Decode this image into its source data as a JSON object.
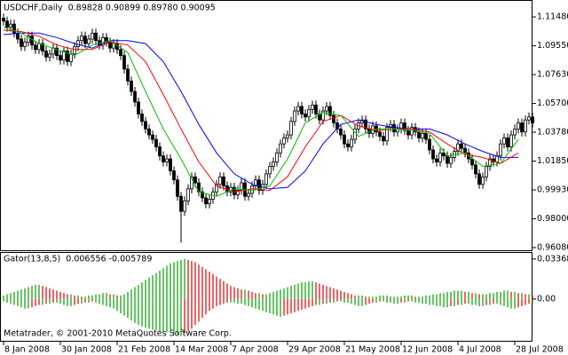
{
  "chart_data": [
    {
      "type": "candlestick",
      "title": "USDCHF,Daily",
      "header": "0.89828 0.90899 0.89780 0.90095",
      "xlim": [
        -1,
        149
      ],
      "xticks": [
        {
          "value": 0,
          "label": "8 Jan 2008"
        },
        {
          "value": 16,
          "label": "30 Jan 2008"
        },
        {
          "value": 32,
          "label": "21 Feb 2008"
        },
        {
          "value": 48,
          "label": "14 Mar 2008"
        },
        {
          "value": 64,
          "label": "7 Apr 2008"
        },
        {
          "value": 80,
          "label": "29 Apr 2008"
        },
        {
          "value": 96,
          "label": "21 May 2008"
        },
        {
          "value": 112,
          "label": "12 Jun 2008"
        },
        {
          "value": 128,
          "label": "4 Jul 2008"
        },
        {
          "value": 144,
          "label": "28 Jul 2008"
        }
      ],
      "ylim": [
        0.959,
        1.1255
      ],
      "yticks": [
        {
          "value": 1.1148,
          "label": "1.11480"
        },
        {
          "value": 1.0955,
          "label": "1.09550"
        },
        {
          "value": 1.0763,
          "label": "1.07630"
        },
        {
          "value": 1.057,
          "label": "1.05700"
        },
        {
          "value": 1.0378,
          "label": "1.03780"
        },
        {
          "value": 1.0185,
          "label": "1.01850"
        },
        {
          "value": 0.9993,
          "label": "0.99930"
        },
        {
          "value": 0.98,
          "label": "0.98000"
        },
        {
          "value": 0.9608,
          "label": "0.96080"
        }
      ],
      "bull_color": "#ffffff",
      "bear_color": "#000000",
      "open": [
        1.114,
        1.112,
        1.108,
        1.11,
        1.104,
        1.1,
        1.095,
        1.098,
        1.102,
        1.096,
        1.093,
        1.097,
        1.092,
        1.088,
        1.09,
        1.094,
        1.089,
        1.086,
        1.092,
        1.085,
        1.09,
        1.095,
        1.099,
        1.102,
        1.097,
        1.1,
        1.104,
        1.099,
        1.096,
        1.101,
        1.098,
        1.094,
        1.097,
        1.093,
        1.089,
        1.08,
        1.072,
        1.065,
        1.058,
        1.05,
        1.045,
        1.04,
        1.036,
        1.033,
        1.028,
        1.022,
        1.018,
        1.02,
        1.012,
        1.006,
        0.995,
        0.985,
        0.992,
        1.0,
        1.008,
        1.004,
        0.998,
        0.994,
        0.99,
        0.993,
        0.998,
        1.003,
        1.008,
        1.002,
        0.998,
        1.001,
        0.996,
        0.999,
        1.004,
        0.995,
        0.997,
        1.002,
        1.006,
        0.999,
        1.003,
        1.01,
        1.015,
        1.018,
        1.024,
        1.03,
        1.034,
        1.036,
        1.045,
        1.052,
        1.055,
        1.05,
        1.048,
        1.053,
        1.056,
        1.05,
        1.046,
        1.052,
        1.055,
        1.049,
        1.044,
        1.04,
        1.036,
        1.03,
        1.028,
        1.033,
        1.04,
        1.044,
        1.046,
        1.04,
        1.037,
        1.042,
        1.038,
        1.035,
        1.032,
        1.041,
        1.043,
        1.038,
        1.04,
        1.044,
        1.039,
        1.036,
        1.041,
        1.038,
        1.034,
        1.037,
        1.033,
        1.026,
        1.02,
        1.018,
        1.024,
        1.022,
        1.017,
        1.021,
        1.025,
        1.03,
        1.027,
        1.024,
        1.02,
        1.016,
        1.01,
        1.003,
        1.008,
        1.015,
        1.02,
        1.018,
        1.022,
        1.03,
        1.034,
        1.028,
        1.036,
        1.04,
        1.044,
        1.038,
        1.046,
        1.048
      ],
      "high": [
        1.117,
        1.115,
        1.113,
        1.113,
        1.107,
        1.103,
        1.101,
        1.105,
        1.105,
        1.099,
        1.1,
        1.1,
        1.095,
        1.093,
        1.097,
        1.097,
        1.092,
        1.095,
        1.095,
        1.093,
        1.098,
        1.102,
        1.105,
        1.105,
        1.103,
        1.107,
        1.107,
        1.102,
        1.104,
        1.104,
        1.101,
        1.1,
        1.1,
        1.096,
        1.092,
        1.083,
        1.075,
        1.068,
        1.061,
        1.053,
        1.048,
        1.043,
        1.039,
        1.036,
        1.031,
        1.025,
        1.023,
        1.023,
        1.015,
        1.009,
        0.998,
        0.995,
        1.003,
        1.011,
        1.011,
        1.007,
        1.001,
        0.997,
        0.996,
        1.001,
        1.006,
        1.011,
        1.011,
        1.005,
        1.004,
        1.004,
        1.002,
        1.007,
        1.007,
        1.0,
        1.005,
        1.009,
        1.009,
        1.006,
        1.013,
        1.018,
        1.021,
        1.027,
        1.033,
        1.037,
        1.039,
        1.048,
        1.055,
        1.058,
        1.058,
        1.053,
        1.056,
        1.059,
        1.059,
        1.053,
        1.055,
        1.058,
        1.058,
        1.052,
        1.047,
        1.043,
        1.039,
        1.033,
        1.036,
        1.043,
        1.047,
        1.049,
        1.049,
        1.043,
        1.045,
        1.045,
        1.041,
        1.038,
        1.044,
        1.046,
        1.046,
        1.043,
        1.047,
        1.047,
        1.042,
        1.044,
        1.044,
        1.041,
        1.04,
        1.04,
        1.036,
        1.029,
        1.023,
        1.027,
        1.027,
        1.025,
        1.024,
        1.028,
        1.033,
        1.033,
        1.03,
        1.027,
        1.023,
        1.019,
        1.013,
        1.011,
        1.018,
        1.023,
        1.023,
        1.025,
        1.033,
        1.037,
        1.037,
        1.039,
        1.043,
        1.047,
        1.047,
        1.049,
        1.051,
        1.051
      ],
      "low": [
        1.109,
        1.105,
        1.105,
        1.101,
        1.097,
        1.092,
        1.092,
        1.095,
        1.093,
        1.09,
        1.09,
        1.089,
        1.085,
        1.085,
        1.087,
        1.086,
        1.083,
        1.083,
        1.082,
        1.082,
        1.087,
        1.092,
        1.096,
        1.094,
        1.094,
        1.097,
        1.096,
        1.093,
        1.093,
        1.095,
        1.091,
        1.091,
        1.09,
        1.086,
        1.077,
        1.069,
        1.062,
        1.055,
        1.047,
        1.042,
        1.037,
        1.033,
        1.03,
        1.025,
        1.019,
        1.015,
        1.015,
        1.009,
        1.003,
        0.992,
        0.964,
        0.982,
        0.989,
        0.997,
        1.001,
        0.995,
        0.991,
        0.987,
        0.987,
        0.99,
        0.995,
        1.0,
        0.999,
        0.995,
        0.995,
        0.993,
        0.993,
        0.996,
        0.992,
        0.992,
        0.994,
        0.999,
        0.996,
        0.996,
        1.0,
        1.007,
        1.012,
        1.015,
        1.021,
        1.027,
        1.031,
        1.033,
        1.042,
        1.049,
        1.047,
        1.045,
        1.045,
        1.05,
        1.047,
        1.043,
        1.043,
        1.049,
        1.046,
        1.041,
        1.037,
        1.033,
        1.027,
        1.025,
        1.025,
        1.03,
        1.037,
        1.041,
        1.037,
        1.034,
        1.034,
        1.035,
        1.032,
        1.029,
        1.029,
        1.038,
        1.035,
        1.035,
        1.037,
        1.036,
        1.033,
        1.033,
        1.035,
        1.031,
        1.031,
        1.03,
        1.023,
        1.017,
        1.015,
        1.015,
        1.019,
        1.014,
        1.014,
        1.018,
        1.022,
        1.024,
        1.021,
        1.017,
        1.013,
        1.007,
        1.0,
        1.0,
        1.005,
        1.012,
        1.015,
        1.015,
        1.019,
        1.027,
        1.025,
        1.025,
        1.033,
        1.037,
        1.035,
        1.035,
        1.043,
        1.041
      ],
      "close": [
        1.112,
        1.108,
        1.11,
        1.104,
        1.1,
        1.095,
        1.098,
        1.102,
        1.096,
        1.093,
        1.097,
        1.092,
        1.088,
        1.09,
        1.094,
        1.089,
        1.086,
        1.092,
        1.085,
        1.09,
        1.095,
        1.099,
        1.102,
        1.097,
        1.1,
        1.104,
        1.099,
        1.096,
        1.101,
        1.098,
        1.094,
        1.097,
        1.093,
        1.089,
        1.08,
        1.072,
        1.065,
        1.058,
        1.05,
        1.045,
        1.04,
        1.036,
        1.033,
        1.028,
        1.022,
        1.018,
        1.02,
        1.012,
        1.006,
        0.995,
        0.985,
        0.992,
        1.0,
        1.008,
        1.004,
        0.998,
        0.994,
        0.99,
        0.993,
        0.998,
        1.003,
        1.008,
        1.002,
        0.998,
        1.001,
        0.996,
        0.999,
        1.004,
        0.995,
        0.997,
        1.002,
        1.006,
        0.999,
        1.003,
        1.01,
        1.015,
        1.018,
        1.024,
        1.03,
        1.034,
        1.036,
        1.045,
        1.052,
        1.055,
        1.05,
        1.048,
        1.053,
        1.056,
        1.05,
        1.046,
        1.052,
        1.055,
        1.049,
        1.044,
        1.04,
        1.036,
        1.03,
        1.028,
        1.033,
        1.04,
        1.044,
        1.046,
        1.04,
        1.037,
        1.042,
        1.038,
        1.035,
        1.032,
        1.041,
        1.043,
        1.038,
        1.04,
        1.044,
        1.039,
        1.036,
        1.041,
        1.038,
        1.034,
        1.037,
        1.033,
        1.026,
        1.02,
        1.018,
        1.024,
        1.022,
        1.017,
        1.021,
        1.025,
        1.03,
        1.027,
        1.024,
        1.02,
        1.016,
        1.01,
        1.003,
        1.008,
        1.015,
        1.02,
        1.018,
        1.022,
        1.03,
        1.034,
        1.028,
        1.036,
        1.04,
        1.044,
        1.038,
        1.046,
        1.048,
        1.044
      ],
      "series": [
        {
          "color": "#0000ff",
          "x": [
            0,
            5,
            10,
            15,
            20,
            25,
            30,
            35,
            40,
            45,
            50,
            55,
            60,
            65,
            70,
            75,
            80,
            85,
            90,
            95,
            100,
            105,
            110,
            115,
            120,
            125,
            130,
            135,
            140,
            145
          ],
          "values": [
            1.103,
            1.104,
            1.104,
            1.101,
            1.097,
            1.094,
            1.099,
            1.099,
            1.097,
            1.085,
            1.065,
            1.043,
            1.024,
            1.01,
            1.003,
            1.0,
            1.001,
            1.012,
            1.03,
            1.043,
            1.046,
            1.043,
            1.041,
            1.04,
            1.04,
            1.036,
            1.03,
            1.025,
            1.021,
            1.021
          ]
        },
        {
          "color": "#ff0000",
          "x": [
            0,
            5,
            10,
            15,
            20,
            25,
            30,
            35,
            40,
            45,
            50,
            55,
            60,
            65,
            70,
            75,
            80,
            85,
            90,
            95,
            100,
            105,
            110,
            115,
            120,
            125,
            130,
            135,
            140,
            145
          ],
          "values": [
            1.106,
            1.105,
            1.102,
            1.096,
            1.093,
            1.093,
            1.098,
            1.096,
            1.085,
            1.063,
            1.04,
            1.018,
            1.002,
            0.998,
            1.0,
            0.999,
            1.008,
            1.028,
            1.045,
            1.049,
            1.042,
            1.039,
            1.04,
            1.04,
            1.038,
            1.03,
            1.023,
            1.021,
            1.017,
            1.024
          ]
        },
        {
          "color": "#00c000",
          "x": [
            0,
            5,
            10,
            15,
            20,
            25,
            30,
            35,
            40,
            45,
            50,
            55,
            60,
            65,
            70,
            75,
            80,
            85,
            90,
            95,
            100,
            105,
            110,
            115,
            120,
            125,
            130,
            135,
            140,
            145
          ],
          "values": [
            1.108,
            1.104,
            1.097,
            1.093,
            1.089,
            1.096,
            1.099,
            1.091,
            1.065,
            1.04,
            1.02,
            0.998,
            0.995,
            1.0,
            0.999,
            1.002,
            1.02,
            1.044,
            1.051,
            1.049,
            1.035,
            1.04,
            1.04,
            1.039,
            1.037,
            1.022,
            1.024,
            1.015,
            1.017,
            1.033
          ]
        }
      ]
    },
    {
      "type": "gator",
      "title": "Gator(13,8,5)",
      "header": "0.006556 -0.005789",
      "footer": "Metatrader, © 2001-2010 MetaQuotes Software Corp.",
      "xlim": [
        -1,
        149
      ],
      "ylim": [
        -0.0352,
        0.0388
      ],
      "yticks": [
        0.033683,
        {
          "value": 0,
          "label": "0.00"
        }
      ],
      "up_color": "#00a000",
      "down_color": "#e00000",
      "upper": [
        0.003,
        0.004,
        0.005,
        0.006,
        0.007,
        0.008,
        0.009,
        0.01,
        0.011,
        0.012,
        0.012,
        0.011,
        0.01,
        0.009,
        0.008,
        0.007,
        0.006,
        0.005,
        0.004,
        0.004,
        0.003,
        0.003,
        0.002,
        0.002,
        0.003,
        0.003,
        0.004,
        0.004,
        0.005,
        0.005,
        0.004,
        0.004,
        0.003,
        0.003,
        0.004,
        0.006,
        0.008,
        0.01,
        0.012,
        0.014,
        0.016,
        0.018,
        0.02,
        0.022,
        0.024,
        0.026,
        0.028,
        0.03,
        0.031,
        0.032,
        0.033,
        0.0337,
        0.033,
        0.032,
        0.031,
        0.029,
        0.027,
        0.025,
        0.023,
        0.021,
        0.019,
        0.017,
        0.015,
        0.013,
        0.011,
        0.01,
        0.009,
        0.008,
        0.008,
        0.007,
        0.006,
        0.005,
        0.005,
        0.004,
        0.004,
        0.005,
        0.006,
        0.007,
        0.008,
        0.009,
        0.01,
        0.011,
        0.012,
        0.013,
        0.014,
        0.014,
        0.015,
        0.015,
        0.014,
        0.013,
        0.012,
        0.011,
        0.01,
        0.009,
        0.008,
        0.007,
        0.006,
        0.005,
        0.004,
        0.003,
        0.003,
        0.003,
        0.002,
        0.002,
        0.002,
        0.002,
        0.003,
        0.003,
        0.003,
        0.002,
        0.002,
        0.002,
        0.002,
        0.003,
        0.003,
        0.003,
        0.002,
        0.002,
        0.002,
        0.003,
        0.003,
        0.004,
        0.004,
        0.005,
        0.005,
        0.006,
        0.006,
        0.007,
        0.007,
        0.007,
        0.006,
        0.006,
        0.005,
        0.005,
        0.004,
        0.004,
        0.004,
        0.005,
        0.005,
        0.006,
        0.006,
        0.007,
        0.007,
        0.006,
        0.006,
        0.005,
        0.005,
        0.004,
        0.004,
        0.003
      ],
      "lower": [
        -0.002,
        -0.003,
        -0.004,
        -0.005,
        -0.006,
        -0.007,
        -0.008,
        -0.008,
        -0.007,
        -0.006,
        -0.005,
        -0.005,
        -0.004,
        -0.004,
        -0.003,
        -0.003,
        -0.004,
        -0.005,
        -0.006,
        -0.006,
        -0.005,
        -0.004,
        -0.004,
        -0.003,
        -0.003,
        -0.002,
        -0.003,
        -0.004,
        -0.005,
        -0.006,
        -0.007,
        -0.008,
        -0.01,
        -0.012,
        -0.014,
        -0.016,
        -0.018,
        -0.02,
        -0.022,
        -0.023,
        -0.024,
        -0.025,
        -0.026,
        -0.026,
        -0.027,
        -0.027,
        -0.028,
        -0.028,
        -0.029,
        -0.03,
        -0.03,
        -0.029,
        -0.027,
        -0.025,
        -0.022,
        -0.019,
        -0.016,
        -0.013,
        -0.01,
        -0.008,
        -0.006,
        -0.005,
        -0.004,
        -0.003,
        -0.003,
        -0.003,
        -0.004,
        -0.004,
        -0.005,
        -0.006,
        -0.007,
        -0.008,
        -0.009,
        -0.01,
        -0.011,
        -0.012,
        -0.013,
        -0.014,
        -0.015,
        -0.014,
        -0.013,
        -0.012,
        -0.011,
        -0.01,
        -0.009,
        -0.008,
        -0.007,
        -0.006,
        -0.005,
        -0.005,
        -0.004,
        -0.004,
        -0.003,
        -0.003,
        -0.002,
        -0.002,
        -0.003,
        -0.003,
        -0.004,
        -0.005,
        -0.006,
        -0.006,
        -0.005,
        -0.004,
        -0.003,
        -0.003,
        -0.002,
        -0.002,
        -0.003,
        -0.003,
        -0.004,
        -0.004,
        -0.003,
        -0.003,
        -0.002,
        -0.002,
        -0.003,
        -0.003,
        -0.004,
        -0.004,
        -0.005,
        -0.005,
        -0.006,
        -0.006,
        -0.007,
        -0.007,
        -0.006,
        -0.006,
        -0.005,
        -0.005,
        -0.004,
        -0.004,
        -0.005,
        -0.005,
        -0.006,
        -0.006,
        -0.005,
        -0.005,
        -0.004,
        -0.004,
        -0.005,
        -0.006,
        -0.007,
        -0.008,
        -0.008,
        -0.007,
        -0.006,
        -0.005,
        -0.004,
        -0.004
      ]
    }
  ]
}
